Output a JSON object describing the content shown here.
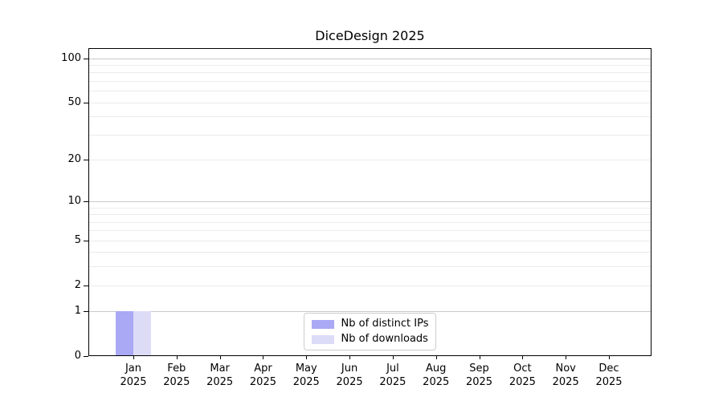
{
  "chart_data": {
    "type": "bar",
    "title": "DiceDesign 2025",
    "categories": [
      {
        "line1": "Jan",
        "line2": "2025"
      },
      {
        "line1": "Feb",
        "line2": "2025"
      },
      {
        "line1": "Mar",
        "line2": "2025"
      },
      {
        "line1": "Apr",
        "line2": "2025"
      },
      {
        "line1": "May",
        "line2": "2025"
      },
      {
        "line1": "Jun",
        "line2": "2025"
      },
      {
        "line1": "Jul",
        "line2": "2025"
      },
      {
        "line1": "Aug",
        "line2": "2025"
      },
      {
        "line1": "Sep",
        "line2": "2025"
      },
      {
        "line1": "Oct",
        "line2": "2025"
      },
      {
        "line1": "Nov",
        "line2": "2025"
      },
      {
        "line1": "Dec",
        "line2": "2025"
      }
    ],
    "series": [
      {
        "name": "Nb of distinct IPs",
        "color": "#a9a9f5",
        "values": [
          1,
          0,
          0,
          0,
          0,
          0,
          0,
          0,
          0,
          0,
          0,
          0
        ]
      },
      {
        "name": "Nb of downloads",
        "color": "#dcdcf7",
        "values": [
          1,
          0,
          0,
          0,
          0,
          0,
          0,
          0,
          0,
          0,
          0,
          0
        ]
      }
    ],
    "xlabel": "",
    "ylabel": "",
    "yscale": "log1p",
    "ylim": [
      0,
      117
    ],
    "y_ticks": [
      0,
      1,
      2,
      5,
      10,
      20,
      50,
      100
    ],
    "y_major_gridlines": [
      1,
      10,
      100
    ],
    "y_minor_gridlines": [
      2,
      3,
      4,
      5,
      6,
      7,
      8,
      9,
      20,
      30,
      40,
      50,
      60,
      70,
      80,
      90
    ],
    "grid": true,
    "legend_position": "lower center"
  }
}
